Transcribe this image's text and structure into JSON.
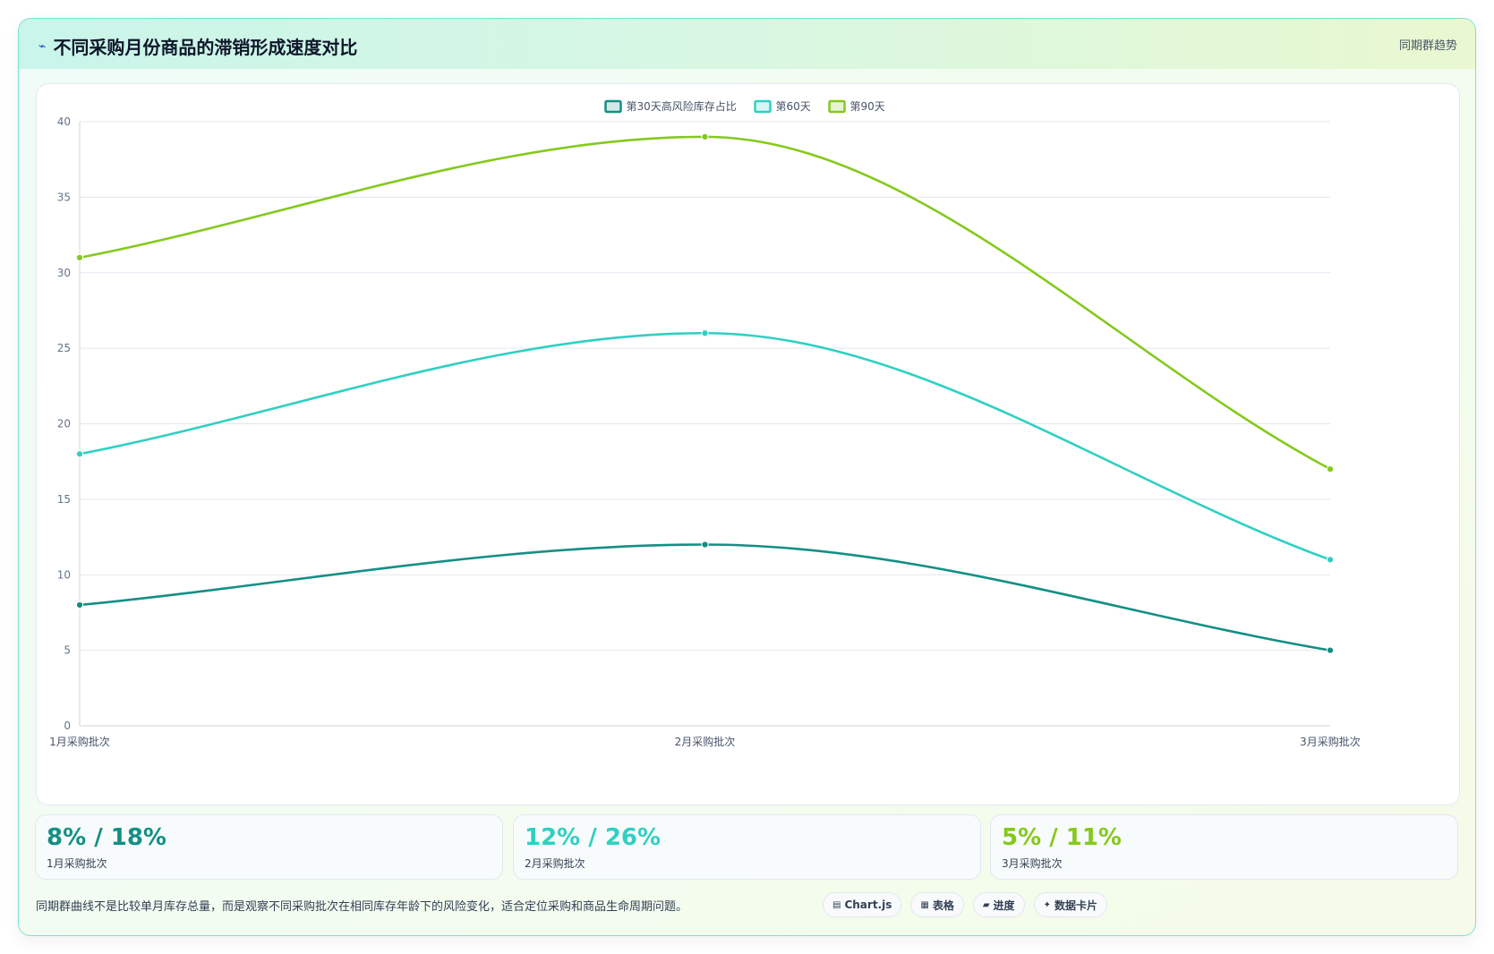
{
  "header": {
    "icon": "chart-trend-icon",
    "title": "不同采购月份商品的滞销形成速度对比",
    "tag": "同期群趋势"
  },
  "chart_data": {
    "type": "line",
    "categories": [
      "1月采购批次",
      "2月采购批次",
      "3月采购批次"
    ],
    "series": [
      {
        "name": "第30天高风险库存占比",
        "values": [
          8,
          12,
          5
        ],
        "color": "#138f85"
      },
      {
        "name": "第60天",
        "values": [
          18,
          26,
          11
        ],
        "color": "#2fd0c2"
      },
      {
        "name": "第90天",
        "values": [
          31,
          39,
          17
        ],
        "color": "#84c91c"
      }
    ],
    "ylim": [
      0,
      40
    ],
    "yticks": [
      0,
      5,
      10,
      15,
      20,
      25,
      30,
      35,
      40
    ],
    "xlabel": "",
    "ylabel": "",
    "legend": "top-center",
    "grid": true,
    "smooth": true
  },
  "stats": [
    {
      "value": "8% / 18%",
      "label": "1月采购批次",
      "color": "#138f85"
    },
    {
      "value": "12% / 26%",
      "label": "2月采购批次",
      "color": "#2fd0c2"
    },
    {
      "value": "5% / 11%",
      "label": "3月采购批次",
      "color": "#84c91c"
    }
  ],
  "footnote": "同期群曲线不是比较单月库存总量，而是观察不同采购批次在相同库存年龄下的风险变化，适合定位采购和商品生命周期问题。",
  "chips": [
    {
      "icon": "chart-icon",
      "glyph": "▤",
      "label": "Chart.js"
    },
    {
      "icon": "table-icon",
      "glyph": "▦",
      "label": "表格"
    },
    {
      "icon": "progress-icon",
      "glyph": "▰",
      "label": "进度"
    },
    {
      "icon": "sparkle-icon",
      "glyph": "✦",
      "label": "数据卡片"
    }
  ]
}
